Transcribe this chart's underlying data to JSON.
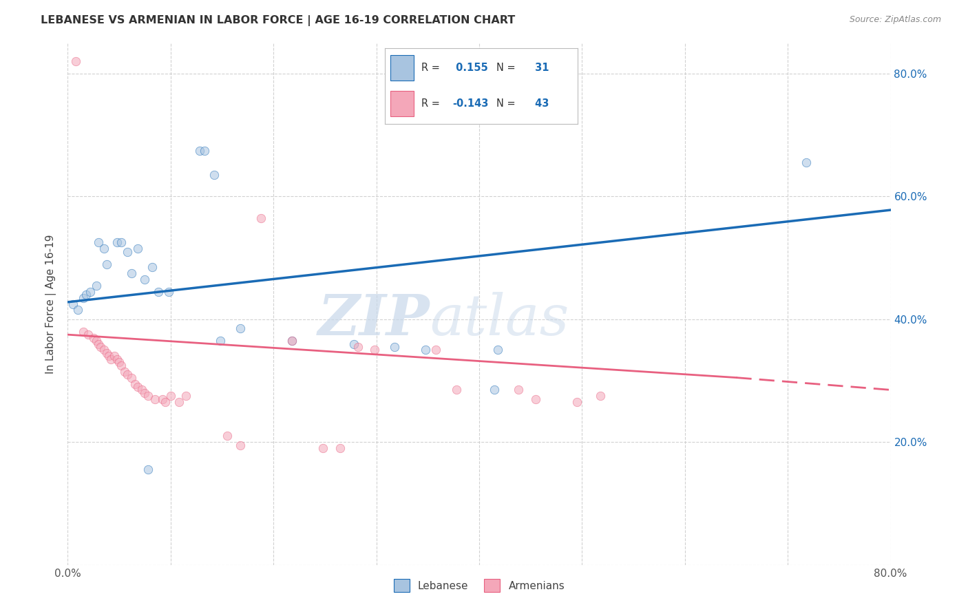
{
  "title": "LEBANESE VS ARMENIAN IN LABOR FORCE | AGE 16-19 CORRELATION CHART",
  "source": "Source: ZipAtlas.com",
  "ylabel": "In Labor Force | Age 16-19",
  "xlim": [
    0.0,
    0.8
  ],
  "ylim": [
    0.0,
    0.85
  ],
  "x_ticks": [
    0.0,
    0.1,
    0.2,
    0.3,
    0.4,
    0.5,
    0.6,
    0.7,
    0.8
  ],
  "y_ticks": [
    0.0,
    0.2,
    0.4,
    0.6,
    0.8
  ],
  "legend_entries": [
    {
      "label": "Lebanese",
      "R": "0.155",
      "N": "31",
      "color": "#a8c4e0"
    },
    {
      "label": "Armenians",
      "R": "-0.143",
      "N": "43",
      "color": "#f4a7b9"
    }
  ],
  "blue_scatter": [
    [
      0.005,
      0.425
    ],
    [
      0.01,
      0.415
    ],
    [
      0.015,
      0.435
    ],
    [
      0.018,
      0.44
    ],
    [
      0.022,
      0.445
    ],
    [
      0.028,
      0.455
    ],
    [
      0.03,
      0.525
    ],
    [
      0.035,
      0.515
    ],
    [
      0.038,
      0.49
    ],
    [
      0.048,
      0.525
    ],
    [
      0.052,
      0.525
    ],
    [
      0.058,
      0.51
    ],
    [
      0.062,
      0.475
    ],
    [
      0.068,
      0.515
    ],
    [
      0.075,
      0.465
    ],
    [
      0.082,
      0.485
    ],
    [
      0.088,
      0.445
    ],
    [
      0.098,
      0.445
    ],
    [
      0.128,
      0.675
    ],
    [
      0.133,
      0.675
    ],
    [
      0.142,
      0.635
    ],
    [
      0.148,
      0.365
    ],
    [
      0.168,
      0.385
    ],
    [
      0.218,
      0.365
    ],
    [
      0.278,
      0.36
    ],
    [
      0.318,
      0.355
    ],
    [
      0.348,
      0.35
    ],
    [
      0.418,
      0.35
    ],
    [
      0.078,
      0.155
    ],
    [
      0.415,
      0.285
    ],
    [
      0.718,
      0.655
    ]
  ],
  "pink_scatter": [
    [
      0.008,
      0.82
    ],
    [
      0.015,
      0.38
    ],
    [
      0.02,
      0.375
    ],
    [
      0.025,
      0.37
    ],
    [
      0.028,
      0.365
    ],
    [
      0.03,
      0.36
    ],
    [
      0.032,
      0.355
    ],
    [
      0.035,
      0.35
    ],
    [
      0.038,
      0.345
    ],
    [
      0.04,
      0.34
    ],
    [
      0.042,
      0.335
    ],
    [
      0.045,
      0.34
    ],
    [
      0.048,
      0.335
    ],
    [
      0.05,
      0.33
    ],
    [
      0.052,
      0.325
    ],
    [
      0.055,
      0.315
    ],
    [
      0.058,
      0.31
    ],
    [
      0.062,
      0.305
    ],
    [
      0.065,
      0.295
    ],
    [
      0.068,
      0.29
    ],
    [
      0.072,
      0.285
    ],
    [
      0.075,
      0.28
    ],
    [
      0.078,
      0.275
    ],
    [
      0.085,
      0.27
    ],
    [
      0.092,
      0.27
    ],
    [
      0.095,
      0.265
    ],
    [
      0.1,
      0.275
    ],
    [
      0.108,
      0.265
    ],
    [
      0.115,
      0.275
    ],
    [
      0.155,
      0.21
    ],
    [
      0.168,
      0.195
    ],
    [
      0.188,
      0.565
    ],
    [
      0.218,
      0.365
    ],
    [
      0.248,
      0.19
    ],
    [
      0.265,
      0.19
    ],
    [
      0.282,
      0.355
    ],
    [
      0.298,
      0.35
    ],
    [
      0.358,
      0.35
    ],
    [
      0.378,
      0.285
    ],
    [
      0.438,
      0.285
    ],
    [
      0.455,
      0.27
    ],
    [
      0.495,
      0.265
    ],
    [
      0.518,
      0.275
    ]
  ],
  "blue_line": {
    "x0": 0.0,
    "y0": 0.428,
    "x1": 0.8,
    "y1": 0.578
  },
  "pink_line_solid": {
    "x0": 0.0,
    "y0": 0.375,
    "x1": 0.65,
    "y1": 0.305
  },
  "pink_line_dash": {
    "x0": 0.65,
    "y0": 0.305,
    "x1": 0.8,
    "y1": 0.285
  },
  "blue_line_color": "#1a6bb5",
  "pink_line_color": "#e86080",
  "grid_color": "#cccccc",
  "background_color": "#ffffff",
  "scatter_alpha": 0.55,
  "scatter_size": 80,
  "watermark_zip": "ZIP",
  "watermark_atlas": "atlas",
  "watermark_color_zip": "#c8d8ea",
  "watermark_color_atlas": "#c8d8ea",
  "watermark_fontsize": 60
}
